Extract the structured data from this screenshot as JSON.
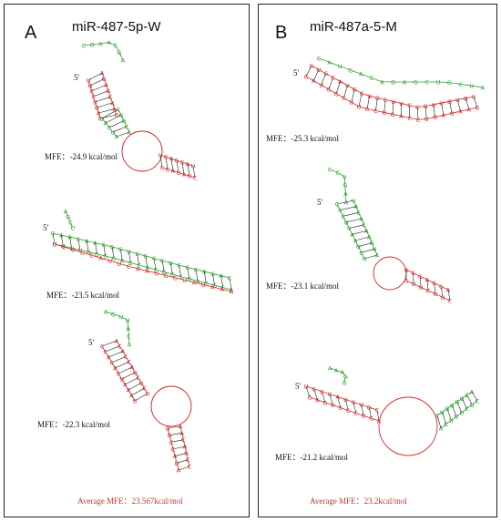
{
  "panels": [
    {
      "letter": "A",
      "title": "miR-487-5p-W",
      "structures": [
        {
          "mfe": "MFE：-24.9 kcal/mol",
          "five_prime": "5'"
        },
        {
          "mfe": "MFE：-23.5 kcal/mol",
          "five_prime": "5'"
        },
        {
          "mfe": "MFE：-22.3 kcal/mol",
          "five_prime": "5'"
        }
      ],
      "average": "Average MFE：23.567kcal/mol"
    },
    {
      "letter": "B",
      "title": "miR-487a-5-M",
      "structures": [
        {
          "mfe": "MFE：-25.3 kcal/mol",
          "five_prime": "5'"
        },
        {
          "mfe": "MFE：-23.1 kcal/mol",
          "five_prime": "5'"
        },
        {
          "mfe": "MFE：-21.2 kcal/mol",
          "five_prime": "5'"
        }
      ],
      "average": "Average MFE：23.2kcal/mol"
    }
  ],
  "colors": {
    "strand_green": "#2ca02c",
    "strand_red": "#d62728",
    "average_text": "#c0392b"
  }
}
